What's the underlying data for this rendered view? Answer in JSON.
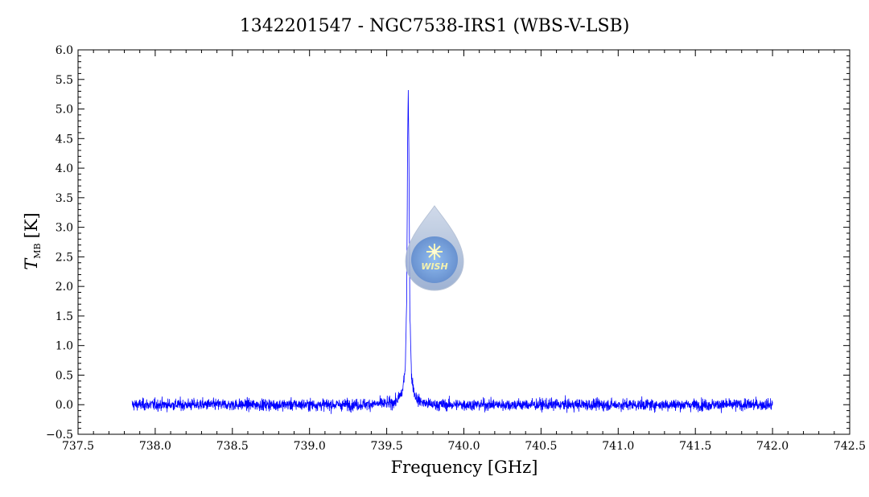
{
  "chart_data": {
    "type": "line",
    "title": "1342201547 - NGC7538-IRS1 (WBS-V-LSB)",
    "xlabel": "Frequency [GHz]",
    "ylabel_main": "T",
    "ylabel_sub": "MB",
    "ylabel_unit": "[K]",
    "xlim": [
      737.5,
      742.5
    ],
    "ylim": [
      -0.5,
      6.0
    ],
    "x_ticks": [
      "737.5",
      "738.0",
      "738.5",
      "739.0",
      "739.5",
      "740.0",
      "740.5",
      "741.0",
      "741.5",
      "742.0",
      "742.5"
    ],
    "y_ticks": [
      "-0.5",
      "0.0",
      "0.5",
      "1.0",
      "1.5",
      "2.0",
      "2.5",
      "3.0",
      "3.5",
      "4.0",
      "4.5",
      "5.0",
      "5.5",
      "6.0"
    ],
    "grid": false,
    "line_color": "#0000ff",
    "series": [
      {
        "x": [
          737.85,
          738.0,
          738.5,
          739.0,
          739.3,
          739.5,
          739.56,
          739.6,
          739.62,
          739.63,
          739.635,
          739.64,
          739.645,
          739.65,
          739.66,
          739.68,
          739.7,
          739.75,
          739.8,
          740.0,
          740.5,
          741.0,
          741.5,
          742.0
        ],
        "y": [
          0.0,
          0.0,
          0.0,
          0.0,
          0.0,
          0.02,
          0.05,
          0.2,
          0.6,
          1.8,
          4.3,
          5.4,
          3.8,
          1.6,
          0.5,
          0.18,
          0.08,
          0.02,
          0.0,
          0.0,
          0.0,
          0.0,
          0.0,
          0.0
        ],
        "noise_rms": 0.07
      }
    ]
  },
  "watermark": {
    "label": "WISH",
    "icon": "wish-drop-logo"
  }
}
